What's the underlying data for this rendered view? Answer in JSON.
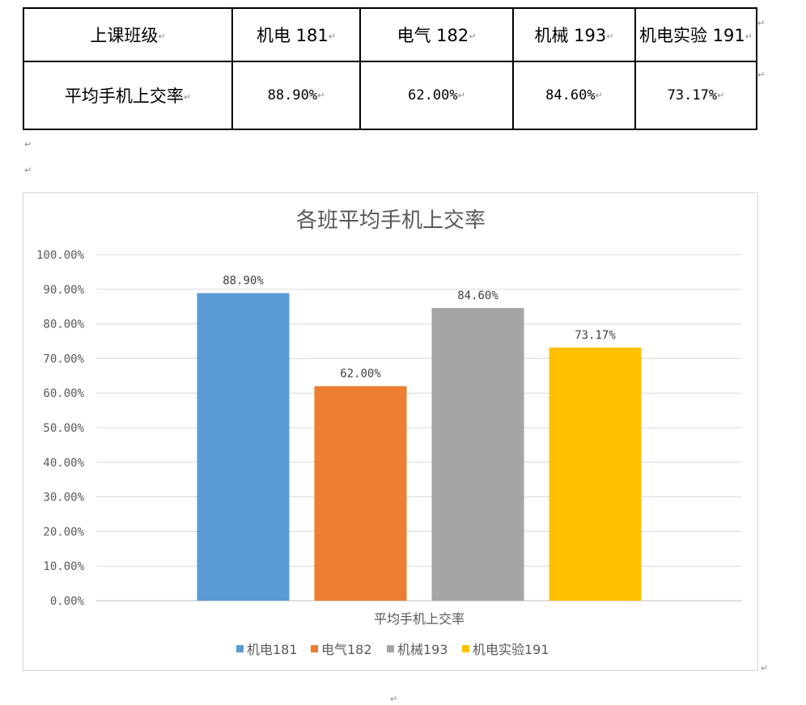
{
  "table": {
    "header": [
      "上课班级",
      "机电 181",
      "电气 182",
      "机械 193",
      "机电实验 191"
    ],
    "row": [
      "平均手机上交率",
      "88.90%",
      "62.00%",
      "84.60%",
      "73.17%"
    ]
  },
  "marks": {
    "para": "↵",
    "cell": "↵"
  },
  "chart_data": {
    "type": "bar",
    "title": "各班平均手机上交率",
    "categories": [
      "平均手机上交率"
    ],
    "xlabel": "平均手机上交率",
    "ylim": [
      0,
      100
    ],
    "yticks": [
      "0.00%",
      "10.00%",
      "20.00%",
      "30.00%",
      "40.00%",
      "50.00%",
      "60.00%",
      "70.00%",
      "80.00%",
      "90.00%",
      "100.00%"
    ],
    "grid": true,
    "legend_position": "bottom",
    "series": [
      {
        "name": "机电181",
        "values": [
          88.9
        ],
        "label": "88.90%",
        "color": "#5B9BD5"
      },
      {
        "name": "电气182",
        "values": [
          62.0
        ],
        "label": "62.00%",
        "color": "#ED7D31"
      },
      {
        "name": "机械193",
        "values": [
          84.6
        ],
        "label": "84.60%",
        "color": "#A5A5A5"
      },
      {
        "name": "机电实验191",
        "values": [
          73.17
        ],
        "label": "73.17%",
        "color": "#FFC000"
      }
    ]
  }
}
